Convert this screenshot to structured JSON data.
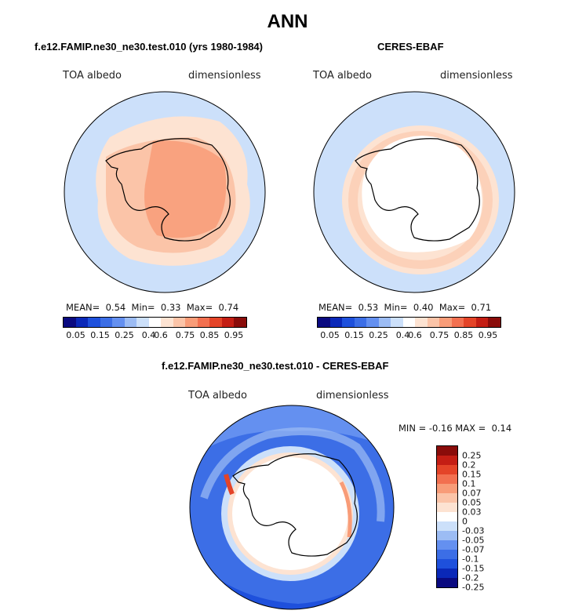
{
  "main_title": "ANN",
  "left_panel": {
    "title": "f.e12.FAMIP.ne30_ne30.test.010 (yrs 1980-1984)",
    "variable": "TOA albedo",
    "units": "dimensionless",
    "stats": {
      "mean_label": "MEAN=",
      "mean": "0.54",
      "min_label": "Min=",
      "min": "0.33",
      "max_label": "Max=",
      "max": "0.74"
    }
  },
  "right_panel": {
    "title": "CERES-EBAF",
    "variable": "TOA albedo",
    "units": "dimensionless",
    "stats": {
      "mean_label": "MEAN=",
      "mean": "0.53",
      "min_label": "Min=",
      "min": "0.40",
      "max_label": "Max=",
      "max": "0.71"
    }
  },
  "diff_panel": {
    "title": "f.e12.FAMIP.ne30_ne30.test.010 - CERES-EBAF",
    "variable": "TOA albedo",
    "units": "dimensionless",
    "stats": {
      "min_label": "MIN =",
      "min": "-0.16",
      "max_label": "MAX =",
      "max": "0.14"
    }
  },
  "colorbar_abs": {
    "ticks": [
      "0.05",
      "0.15",
      "0.25",
      "0.4",
      "0.6",
      "0.75",
      "0.85",
      "0.95"
    ],
    "colors": [
      "#0a0a80",
      "#0a28b8",
      "#1e50dc",
      "#3c6ee6",
      "#6490f0",
      "#9cbcf4",
      "#cce0fa",
      "#ffffff",
      "#fde3d2",
      "#fbc4a8",
      "#f89c78",
      "#f27050",
      "#e44428",
      "#c41e14",
      "#8a0c0a"
    ]
  },
  "colorbar_diff": {
    "ticks": [
      "0.25",
      "0.2",
      "0.15",
      "0.1",
      "0.07",
      "0.05",
      "0.03",
      "0",
      "-0.03",
      "-0.05",
      "-0.07",
      "-0.1",
      "-0.15",
      "-0.2",
      "-0.25"
    ],
    "colors": [
      "#8a0c0a",
      "#c41e14",
      "#e44428",
      "#f27050",
      "#f89c78",
      "#fbc4a8",
      "#fde3d2",
      "#ffffff",
      "#cce0fa",
      "#9cbcf4",
      "#6490f0",
      "#3c6ee6",
      "#1e50dc",
      "#0a28b8",
      "#0a0a80"
    ]
  }
}
